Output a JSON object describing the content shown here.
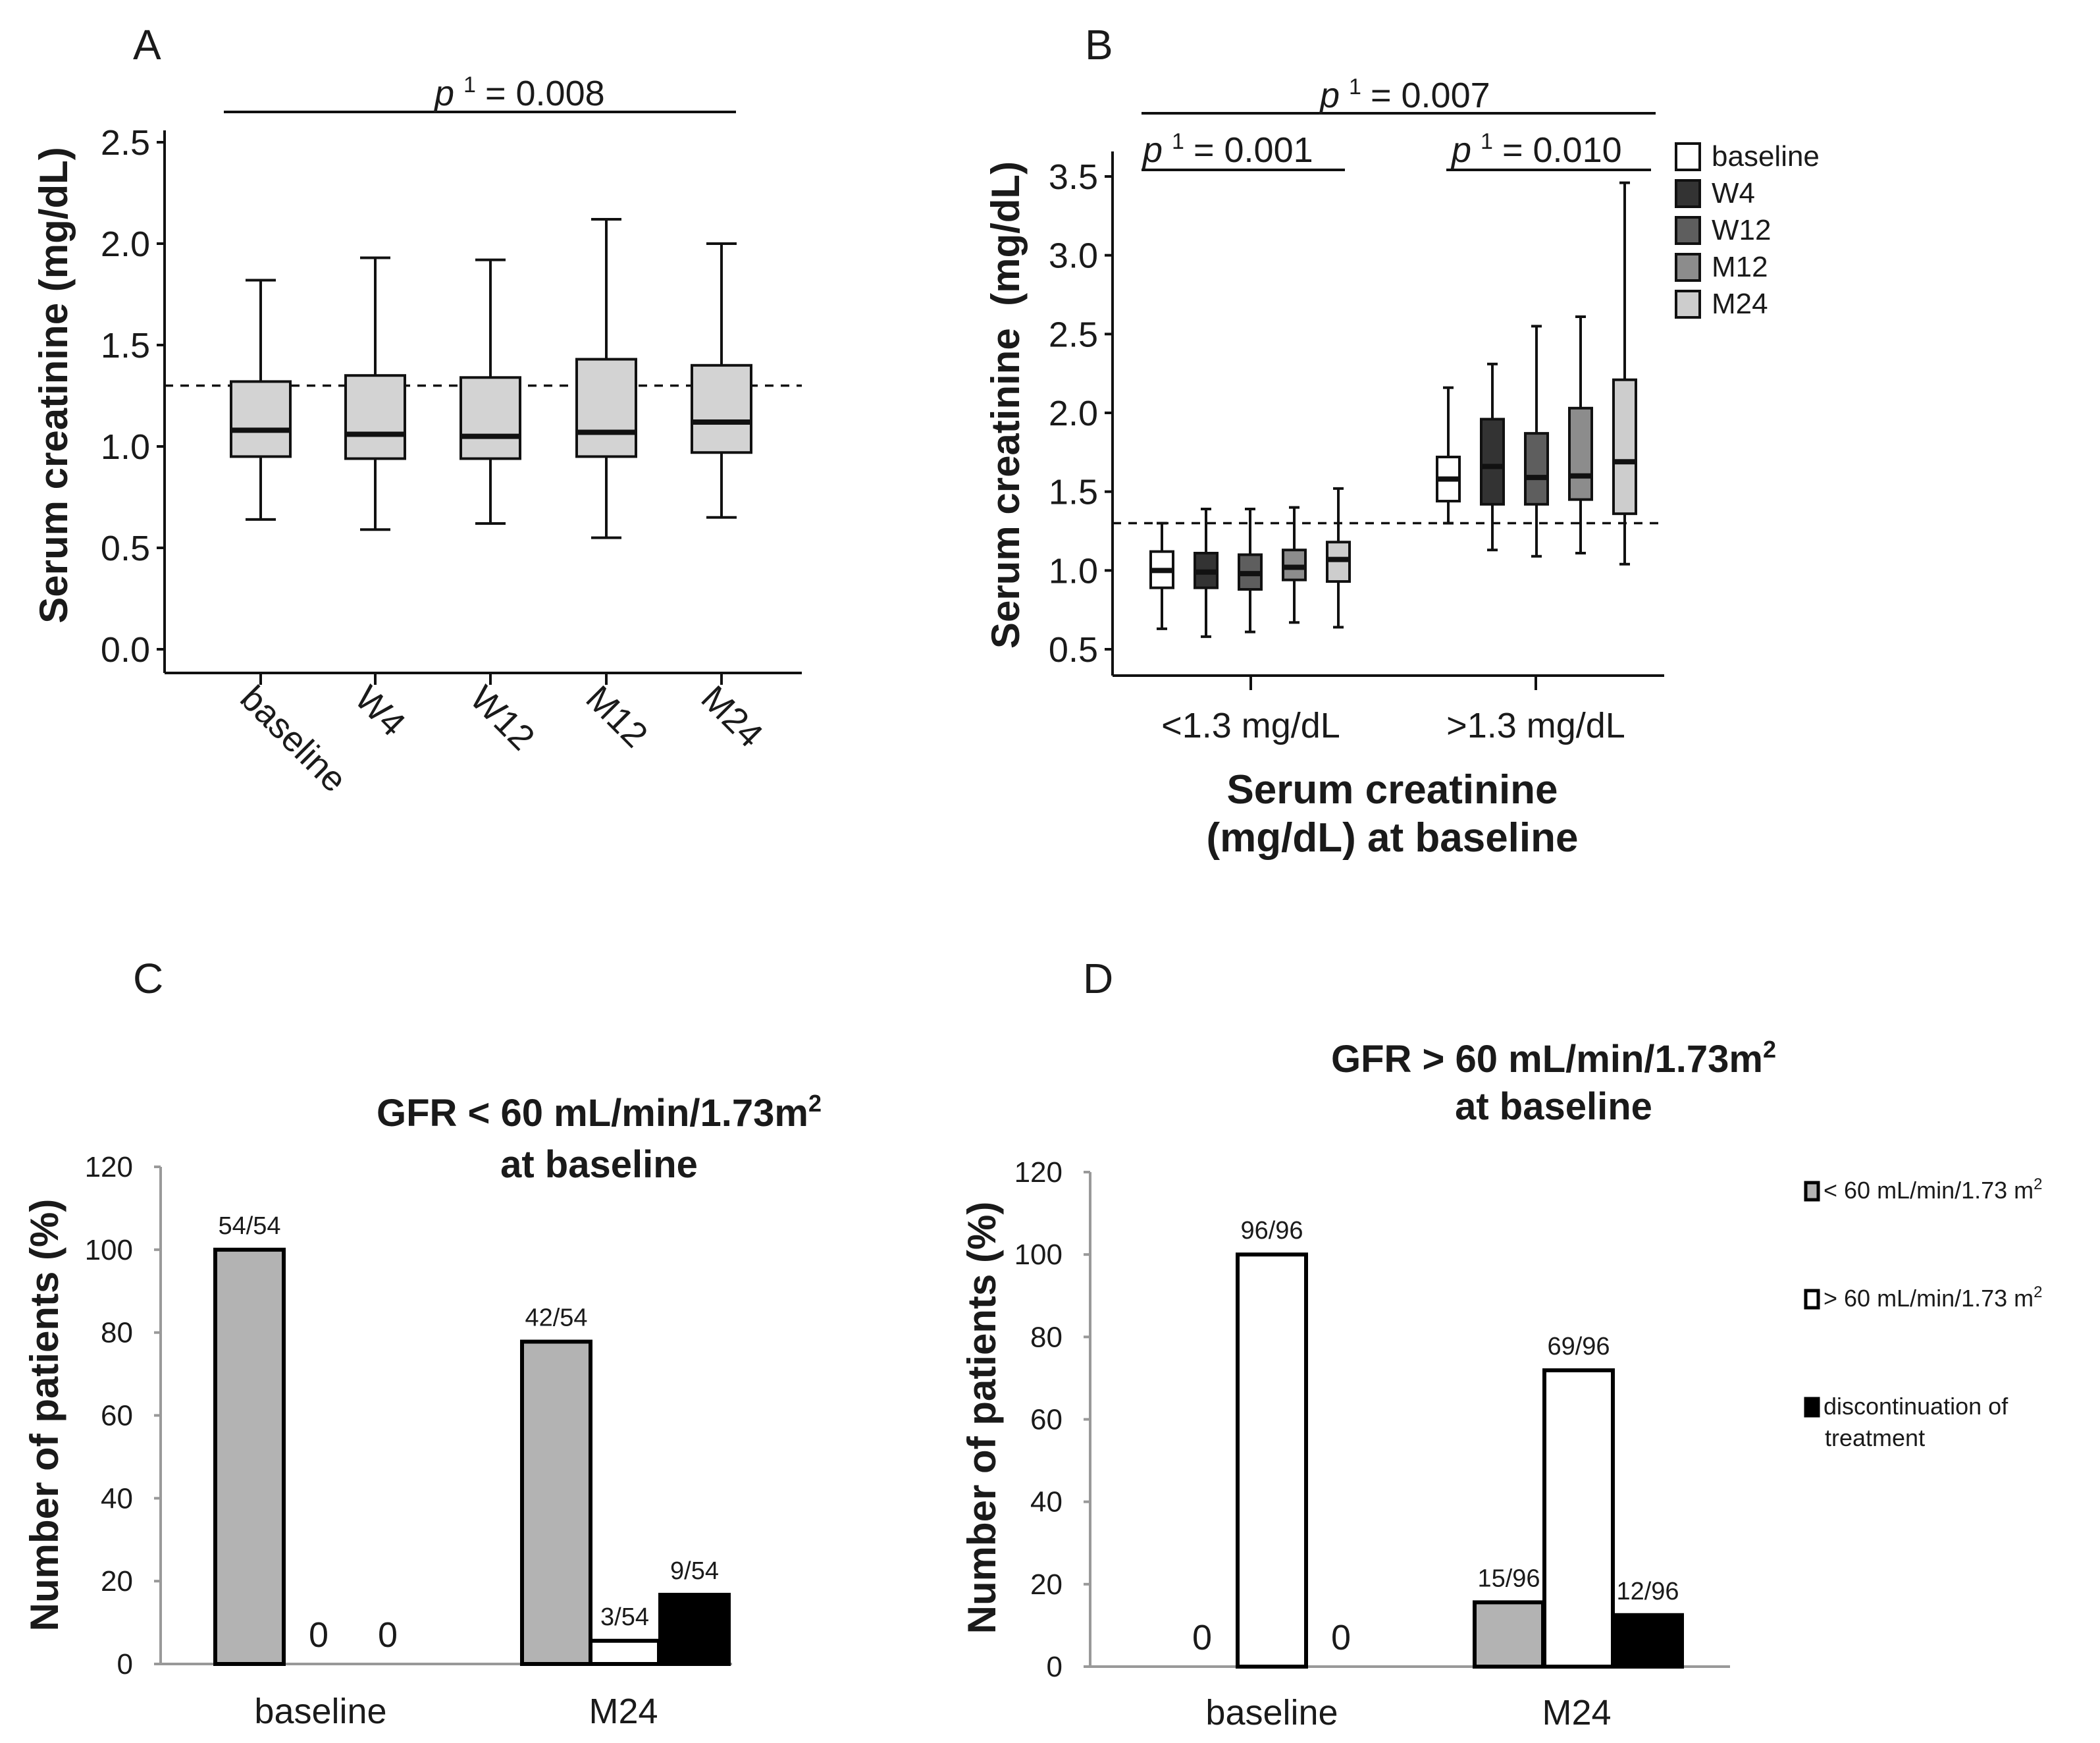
{
  "chart_data": [
    {
      "panel": "A",
      "type": "box",
      "ylabel": "Serum creatinine (mg/dL)",
      "ylim": [
        0,
        2.6
      ],
      "yticks": [
        "0.0",
        "0.5",
        "1.0",
        "1.5",
        "2.0",
        "2.5"
      ],
      "reference_line": 1.3,
      "categories": [
        "baseline",
        "W4",
        "W12",
        "M12",
        "M24"
      ],
      "boxes": [
        {
          "min": 0.64,
          "q1": 0.95,
          "median": 1.08,
          "q3": 1.32,
          "max": 1.82
        },
        {
          "min": 0.59,
          "q1": 0.94,
          "median": 1.06,
          "q3": 1.35,
          "max": 1.93
        },
        {
          "min": 0.62,
          "q1": 0.94,
          "median": 1.05,
          "q3": 1.34,
          "max": 1.92
        },
        {
          "min": 0.55,
          "q1": 0.95,
          "median": 1.07,
          "q3": 1.43,
          "max": 2.12
        },
        {
          "min": 0.65,
          "q1": 0.97,
          "median": 1.12,
          "q3": 1.4,
          "max": 2.0
        }
      ],
      "p_label": "p",
      "p_sup": "1",
      "p_value": "= 0.008"
    },
    {
      "panel": "B",
      "type": "box",
      "ylabel": "Serum creatinine  (mg/dL)",
      "xlabel_line1": "Serum creatinine",
      "xlabel_line2": "(mg/dL) at baseline",
      "ylim": [
        0.35,
        3.6
      ],
      "yticks": [
        "0.5",
        "1.0",
        "1.5",
        "2.0",
        "2.5",
        "3.0",
        "3.5"
      ],
      "reference_line": 1.3,
      "groups": [
        "<1.3 mg/dL",
        ">1.3 mg/dL"
      ],
      "series": [
        {
          "name": "baseline",
          "color": "#ffffff",
          "boxes": [
            {
              "min": 0.63,
              "q1": 0.89,
              "median": 1.0,
              "q3": 1.12,
              "max": 1.3
            },
            {
              "min": 1.3,
              "q1": 1.44,
              "median": 1.58,
              "q3": 1.72,
              "max": 2.16
            }
          ]
        },
        {
          "name": "W4",
          "color": "#333333",
          "boxes": [
            {
              "min": 0.58,
              "q1": 0.89,
              "median": 0.99,
              "q3": 1.11,
              "max": 1.39
            },
            {
              "min": 1.13,
              "q1": 1.42,
              "median": 1.66,
              "q3": 1.96,
              "max": 2.31
            }
          ]
        },
        {
          "name": "W12",
          "color": "#5e5e5e",
          "boxes": [
            {
              "min": 0.61,
              "q1": 0.88,
              "median": 0.98,
              "q3": 1.1,
              "max": 1.39
            },
            {
              "min": 1.09,
              "q1": 1.42,
              "median": 1.59,
              "q3": 1.87,
              "max": 2.55
            }
          ]
        },
        {
          "name": "M12",
          "color": "#8c8c8c",
          "boxes": [
            {
              "min": 0.67,
              "q1": 0.94,
              "median": 1.02,
              "q3": 1.13,
              "max": 1.4
            },
            {
              "min": 1.11,
              "q1": 1.45,
              "median": 1.6,
              "q3": 2.03,
              "max": 2.61
            }
          ]
        },
        {
          "name": "M24",
          "color": "#cdcdcd",
          "boxes": [
            {
              "min": 0.64,
              "q1": 0.93,
              "median": 1.07,
              "q3": 1.18,
              "max": 1.52
            },
            {
              "min": 1.04,
              "q1": 1.36,
              "median": 1.69,
              "q3": 2.21,
              "max": 3.46
            }
          ]
        }
      ],
      "p_label": "p",
      "p_sup": "1",
      "p_overall": "= 0.007",
      "p_low": "= 0.001",
      "p_high": "= 0.010"
    },
    {
      "panel": "C",
      "type": "bar",
      "title_line1": "GFR < 60 mL/min/1.73m",
      "title_sup": "2",
      "title_line2": "at baseline",
      "ylabel": "Number of patients (%)",
      "ylim": [
        0,
        120
      ],
      "yticks": [
        "0",
        "20",
        "40",
        "60",
        "80",
        "100",
        "120"
      ],
      "categories": [
        "baseline",
        "M24"
      ],
      "series": [
        {
          "name": "< 60 mL/min/1.73 m2",
          "color": "#b3b3b3",
          "values": [
            100,
            77.8
          ],
          "labels": [
            "54/54",
            "42/54"
          ]
        },
        {
          "name": "> 60 mL/min/1.73 m2",
          "color": "#ffffff",
          "values": [
            0,
            5.6
          ],
          "labels": [
            "0",
            "3/54"
          ]
        },
        {
          "name": "discontinuation of treatment",
          "color": "#000000",
          "values": [
            0,
            16.7
          ],
          "labels": [
            "0",
            "9/54"
          ]
        }
      ]
    },
    {
      "panel": "D",
      "type": "bar",
      "title_line1": "GFR > 60 mL/min/1.73m",
      "title_sup": "2",
      "title_line2": "at baseline",
      "ylabel": "Number of patients (%)",
      "ylim": [
        0,
        120
      ],
      "yticks": [
        "0",
        "20",
        "40",
        "60",
        "80",
        "100",
        "120"
      ],
      "categories": [
        "baseline",
        "M24"
      ],
      "series": [
        {
          "name": "< 60 mL/min/1.73 m2",
          "color": "#b3b3b3",
          "values": [
            0,
            15.6
          ],
          "labels": [
            "0",
            "15/96"
          ]
        },
        {
          "name": "> 60 mL/min/1.73 m2",
          "color": "#ffffff",
          "values": [
            100,
            71.9
          ],
          "labels": [
            "96/96",
            "69/96"
          ]
        },
        {
          "name": "discontinuation of treatment",
          "color": "#000000",
          "values": [
            0,
            12.5
          ],
          "labels": [
            "0",
            "12/96"
          ]
        }
      ],
      "legend": [
        {
          "text": "< 60 mL/min/1.73 m",
          "sup": "2",
          "color": "#b3b3b3"
        },
        {
          "text": "> 60 mL/min/1.73 m",
          "sup": "2",
          "color": "#ffffff"
        },
        {
          "text_line1": "discontinuation of",
          "text_line2": "treatment",
          "color": "#000000"
        }
      ]
    }
  ]
}
